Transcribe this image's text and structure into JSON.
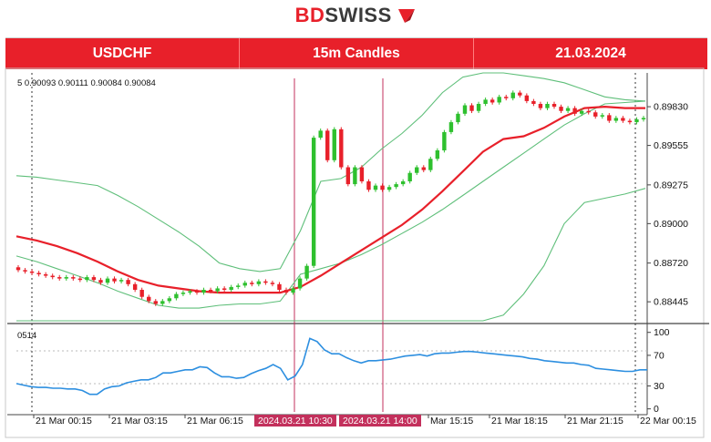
{
  "brand": {
    "bd": "BD",
    "swiss": "SWISS"
  },
  "header": {
    "symbol": "USDCHF",
    "timeframe": "15m Candles",
    "date": "21.03.2024"
  },
  "ohlc_readout": "5  0.90093 0.90111 0.90084 0.90084",
  "osc_readout": "0514",
  "colors": {
    "banner": "#e8202a",
    "bull": "#2ec02e",
    "bear": "#e8202a",
    "ma": "#e8202a",
    "bands": "#5fbf7a",
    "oscillator": "#2d8fe0",
    "marker": "#c3305c"
  },
  "chart_data": [
    {
      "type": "candlestick",
      "title": "",
      "y_ticks": [
        "0.89830",
        "0.89555",
        "0.89275",
        "0.89000",
        "0.88720",
        "0.88445"
      ],
      "ylim": [
        0.8831,
        0.9007
      ],
      "x_tick_labels": [
        "21 Mar 00:15",
        "21 Mar 03:15",
        "21 Mar 06:15",
        "2024.03.21 10:30",
        "2024.03.21 14:00",
        "Mar 15:15",
        "21 Mar 18:15",
        "21 Mar 21:15",
        "22 Mar 00:15"
      ],
      "highlighted_labels": [
        "2024.03.21 10:30",
        "2024.03.21 14:00"
      ],
      "candles": [
        [
          0.8869,
          0.8867
        ],
        [
          0.8867,
          0.8866
        ],
        [
          0.8866,
          0.8865
        ],
        [
          0.8865,
          0.8864
        ],
        [
          0.8864,
          0.8863
        ],
        [
          0.8863,
          0.8862
        ],
        [
          0.8862,
          0.8861
        ],
        [
          0.8861,
          0.8862
        ],
        [
          0.8862,
          0.8861
        ],
        [
          0.8861,
          0.886
        ],
        [
          0.886,
          0.8862
        ],
        [
          0.8862,
          0.886
        ],
        [
          0.886,
          0.8858
        ],
        [
          0.8858,
          0.8861
        ],
        [
          0.8861,
          0.8859
        ],
        [
          0.8859,
          0.886
        ],
        [
          0.886,
          0.8857
        ],
        [
          0.8857,
          0.8853
        ],
        [
          0.8853,
          0.8848
        ],
        [
          0.8848,
          0.8845
        ],
        [
          0.8845,
          0.8843
        ],
        [
          0.8843,
          0.8845
        ],
        [
          0.8845,
          0.8847
        ],
        [
          0.8847,
          0.885
        ],
        [
          0.885,
          0.8851
        ],
        [
          0.8851,
          0.8852
        ],
        [
          0.8852,
          0.8851
        ],
        [
          0.8851,
          0.8853
        ],
        [
          0.8853,
          0.8852
        ],
        [
          0.8852,
          0.8854
        ],
        [
          0.8854,
          0.8853
        ],
        [
          0.8853,
          0.8855
        ],
        [
          0.8855,
          0.8856
        ],
        [
          0.8856,
          0.8858
        ],
        [
          0.8858,
          0.8857
        ],
        [
          0.8857,
          0.8859
        ],
        [
          0.8859,
          0.8858
        ],
        [
          0.8858,
          0.8857
        ],
        [
          0.8857,
          0.8853
        ],
        [
          0.8853,
          0.8851
        ],
        [
          0.8851,
          0.8854
        ],
        [
          0.8854,
          0.8861
        ],
        [
          0.8861,
          0.887
        ],
        [
          0.887,
          0.8961
        ],
        [
          0.8961,
          0.8966
        ],
        [
          0.8966,
          0.8945
        ],
        [
          0.8945,
          0.8967
        ],
        [
          0.8967,
          0.894
        ],
        [
          0.894,
          0.8928
        ],
        [
          0.8928,
          0.894
        ],
        [
          0.894,
          0.893
        ],
        [
          0.893,
          0.8924
        ],
        [
          0.8924,
          0.8927
        ],
        [
          0.8927,
          0.8924
        ],
        [
          0.8924,
          0.8926
        ],
        [
          0.8926,
          0.8928
        ],
        [
          0.8928,
          0.893
        ],
        [
          0.893,
          0.8936
        ],
        [
          0.8936,
          0.894
        ],
        [
          0.894,
          0.8938
        ],
        [
          0.8938,
          0.8946
        ],
        [
          0.8946,
          0.8952
        ],
        [
          0.8952,
          0.8965
        ],
        [
          0.8965,
          0.8972
        ],
        [
          0.8972,
          0.8978
        ],
        [
          0.8978,
          0.8984
        ],
        [
          0.8984,
          0.898
        ],
        [
          0.898,
          0.8985
        ],
        [
          0.8985,
          0.8988
        ],
        [
          0.8988,
          0.8986
        ],
        [
          0.8986,
          0.899
        ],
        [
          0.899,
          0.8989
        ],
        [
          0.8989,
          0.8993
        ],
        [
          0.8993,
          0.8991
        ],
        [
          0.8991,
          0.8987
        ],
        [
          0.8987,
          0.8985
        ],
        [
          0.8985,
          0.8982
        ],
        [
          0.8982,
          0.8985
        ],
        [
          0.8985,
          0.8983
        ],
        [
          0.8983,
          0.898
        ],
        [
          0.898,
          0.8982
        ],
        [
          0.8982,
          0.8978
        ],
        [
          0.8978,
          0.898
        ],
        [
          0.898,
          0.8979
        ],
        [
          0.8979,
          0.8976
        ],
        [
          0.8976,
          0.8977
        ],
        [
          0.8977,
          0.8973
        ],
        [
          0.8973,
          0.8975
        ],
        [
          0.8975,
          0.8973
        ],
        [
          0.8973,
          0.8972
        ],
        [
          0.8972,
          0.8974
        ],
        [
          0.8974,
          0.8975
        ]
      ],
      "moving_average": [
        0.8891,
        0.8888,
        0.8884,
        0.8879,
        0.8873,
        0.8866,
        0.886,
        0.8856,
        0.8854,
        0.8852,
        0.8851,
        0.8851,
        0.8851,
        0.8851,
        0.8855,
        0.8863,
        0.8872,
        0.8881,
        0.889,
        0.8899,
        0.891,
        0.8923,
        0.8937,
        0.8951,
        0.896,
        0.8962,
        0.8968,
        0.8976,
        0.8982,
        0.8983,
        0.8982,
        0.8982
      ],
      "upper_band": [
        0.8934,
        0.8933,
        0.8931,
        0.8929,
        0.8927,
        0.892,
        0.8912,
        0.8903,
        0.8894,
        0.8884,
        0.8872,
        0.8868,
        0.8866,
        0.8868,
        0.8895,
        0.893,
        0.8932,
        0.894,
        0.8953,
        0.8964,
        0.8977,
        0.8993,
        0.9004,
        0.9007,
        0.9007,
        0.9005,
        0.9003,
        0.9,
        0.8995,
        0.899,
        0.8988,
        0.8987
      ],
      "lower_band": [
        0.8877,
        0.8873,
        0.8868,
        0.8863,
        0.8858,
        0.8852,
        0.8847,
        0.8842,
        0.884,
        0.884,
        0.8842,
        0.8843,
        0.8843,
        0.8845,
        0.8864,
        0.8868,
        0.8872,
        0.8878,
        0.8885,
        0.8893,
        0.8901,
        0.891,
        0.892,
        0.893,
        0.894,
        0.895,
        0.896,
        0.897,
        0.8978,
        0.8985,
        0.8986,
        0.8987
      ],
      "outer_lower_band": [
        0.8831,
        0.8831,
        0.8831,
        0.8831,
        0.8831,
        0.8831,
        0.8831,
        0.8831,
        0.8831,
        0.8831,
        0.8831,
        0.8831,
        0.8831,
        0.8831,
        0.8831,
        0.8831,
        0.8831,
        0.8831,
        0.8831,
        0.8831,
        0.8831,
        0.8831,
        0.8831,
        0.8831,
        0.8835,
        0.885,
        0.887,
        0.89,
        0.8915,
        0.8918,
        0.8921,
        0.8925
      ]
    },
    {
      "type": "line",
      "y_ticks": [
        "100",
        "70",
        "30",
        "0"
      ],
      "ylim": [
        -4,
        108
      ],
      "levels": [
        70,
        30
      ],
      "values": [
        33,
        31,
        29,
        28,
        28,
        27,
        27,
        26,
        26,
        24,
        19,
        19,
        26,
        29,
        30,
        34,
        36,
        38,
        38,
        41,
        47,
        47,
        49,
        51,
        51,
        55,
        54,
        47,
        42,
        42,
        40,
        41,
        46,
        50,
        53,
        58,
        53,
        38,
        43,
        58,
        92,
        88,
        77,
        72,
        72,
        67,
        63,
        60,
        63,
        63,
        64,
        65,
        67,
        69,
        70,
        71,
        69,
        72,
        73,
        73,
        74,
        75,
        75,
        74,
        73,
        72,
        71,
        70,
        69,
        68,
        66,
        65,
        63,
        62,
        61,
        60,
        60,
        58,
        57,
        53,
        52,
        51,
        50,
        49,
        49,
        51,
        51
      ]
    }
  ]
}
